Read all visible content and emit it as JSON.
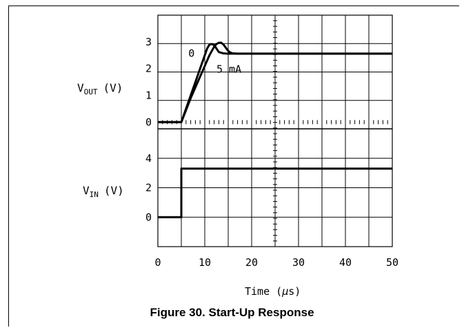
{
  "caption": "Figure 30. Start-Up Response",
  "chart_data": [
    {
      "type": "line",
      "panel": "top",
      "ylabel": {
        "main": "V",
        "sub": "OUT",
        "unit": "(V)"
      },
      "yticks": [
        0,
        1,
        2,
        3
      ],
      "ylim": [
        -0.25,
        4
      ],
      "xlim": [
        0,
        50
      ],
      "grid": true,
      "series": [
        {
          "name": "0",
          "x": [
            0,
            5,
            6,
            7,
            8,
            9,
            10,
            10.5,
            11,
            11.5,
            12,
            12.5,
            13,
            14,
            15,
            16,
            17,
            50
          ],
          "y": [
            0,
            0,
            0.5,
            1.0,
            1.5,
            2.0,
            2.5,
            2.75,
            2.9,
            2.92,
            2.88,
            2.75,
            2.62,
            2.57,
            2.56,
            2.56,
            2.56,
            2.56
          ]
        },
        {
          "name": "5 mA",
          "x": [
            0,
            5,
            6,
            7,
            8,
            9,
            10,
            11,
            12,
            12.5,
            13,
            13.5,
            14,
            14.5,
            15,
            15.5,
            16,
            17,
            18,
            50
          ],
          "y": [
            0,
            0,
            0.45,
            0.9,
            1.3,
            1.7,
            2.1,
            2.5,
            2.82,
            2.92,
            2.97,
            2.97,
            2.9,
            2.78,
            2.66,
            2.6,
            2.57,
            2.56,
            2.56,
            2.56
          ]
        }
      ],
      "annotations": [
        {
          "text": "0",
          "x": 6.5,
          "y": 2.6
        },
        {
          "text": "5 mA",
          "x": 12.5,
          "y": 2.0
        }
      ]
    },
    {
      "type": "line",
      "panel": "bottom",
      "ylabel": {
        "main": "V",
        "sub": "IN",
        "unit": "(V)"
      },
      "yticks": [
        0,
        2,
        4
      ],
      "ylim": [
        -2,
        6
      ],
      "xlim": [
        0,
        50
      ],
      "grid": true,
      "series": [
        {
          "name": "",
          "x": [
            0,
            5,
            5,
            50
          ],
          "y": [
            0,
            0,
            3.3,
            3.3
          ]
        }
      ]
    }
  ],
  "xaxis": {
    "ticks": [
      "0",
      "10",
      "20",
      "30",
      "40",
      "50"
    ],
    "label": {
      "main": "Time (",
      "symbol": "µ",
      "unit": "s)"
    }
  },
  "colors": {
    "line": "#000000",
    "grid": "#000000",
    "background": "#ffffff"
  }
}
